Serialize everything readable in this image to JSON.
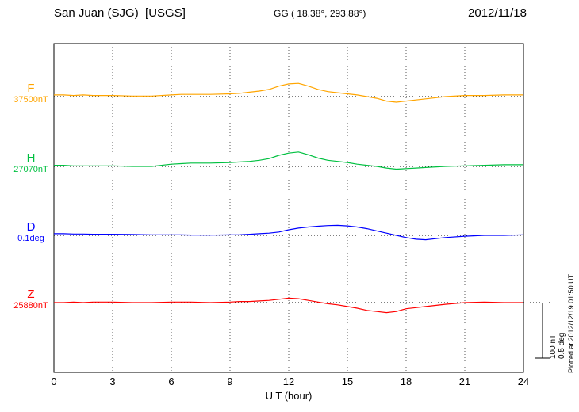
{
  "header": {
    "station": "San Juan (SJG)  [USGS]",
    "coords": "GG ( 18.38°, 293.88°)",
    "date": "2012/11/18"
  },
  "axis": {
    "ticks": [
      "0",
      "3",
      "6",
      "9",
      "12",
      "15",
      "18",
      "21",
      "24"
    ],
    "xlabel": "U T (hour)"
  },
  "scalebar": {
    "line1": "100 nT",
    "line2": "0.5 deg"
  },
  "plotted_at": "Plotted at 2012/12/19 01:50 UT",
  "chart_data": {
    "type": "line",
    "title": "San Juan (SJG) [USGS] magnetogram",
    "date": "2012/11/18",
    "xlabel": "U T (hour)",
    "x_range": [
      0,
      24
    ],
    "x_ticks": [
      0,
      3,
      6,
      9,
      12,
      15,
      18,
      21,
      24
    ],
    "grid": "dotted-vertical",
    "scale_bar": {
      "nT": 100,
      "deg": 0.5
    },
    "x": [
      0,
      0.5,
      1,
      1.5,
      2,
      3,
      4,
      5,
      6,
      6.5,
      7,
      8,
      9,
      9.5,
      10,
      10.5,
      11,
      11.5,
      12,
      12.5,
      13,
      13.5,
      14,
      14.5,
      15,
      15.5,
      16,
      16.5,
      17,
      17.5,
      18,
      18.5,
      19,
      20,
      21,
      22,
      23,
      24
    ],
    "series": [
      {
        "name": "F",
        "color": "#FFA500",
        "unit": "nT",
        "baseline_label": "37500nT",
        "baseline_value": 37500,
        "offsets": [
          3,
          3,
          2,
          3,
          2,
          2,
          1,
          1,
          3,
          4,
          4,
          4,
          5,
          6,
          8,
          10,
          13,
          19,
          23,
          24,
          19,
          13,
          9,
          7,
          5,
          3,
          0,
          -3,
          -8,
          -10,
          -8,
          -6,
          -4,
          0,
          2,
          2,
          3,
          3
        ]
      },
      {
        "name": "H",
        "color": "#00C040",
        "unit": "nT",
        "baseline_label": "27070nT",
        "baseline_value": 27070,
        "offsets": [
          2,
          2,
          1,
          1,
          1,
          1,
          0,
          0,
          4,
          5,
          6,
          6,
          7,
          8,
          9,
          11,
          14,
          20,
          24,
          26,
          21,
          15,
          11,
          9,
          7,
          4,
          2,
          0,
          -3,
          -5,
          -4,
          -3,
          -2,
          0,
          1,
          2,
          3,
          3
        ]
      },
      {
        "name": "D",
        "color": "#0000FF",
        "unit": "deg",
        "baseline_label": "0.1deg",
        "baseline_value": 0.1,
        "offsets": [
          0.015,
          0.015,
          0.012,
          0.012,
          0.01,
          0.01,
          0.008,
          0.005,
          0.005,
          0.004,
          0.003,
          0.002,
          0.004,
          0.006,
          0.01,
          0.015,
          0.02,
          0.03,
          0.05,
          0.065,
          0.075,
          0.082,
          0.088,
          0.09,
          0.085,
          0.075,
          0.06,
          0.04,
          0.02,
          0.0,
          -0.02,
          -0.035,
          -0.04,
          -0.02,
          -0.008,
          0.0,
          0.0,
          0.005
        ]
      },
      {
        "name": "Z",
        "color": "#FF0000",
        "unit": "nT",
        "baseline_label": "25880nT",
        "baseline_value": 25880,
        "offsets": [
          0,
          0,
          1,
          0,
          1,
          1,
          0,
          0,
          1,
          1,
          1,
          0,
          1,
          2,
          2,
          3,
          4,
          6,
          8,
          7,
          4,
          1,
          -2,
          -4,
          -7,
          -10,
          -14,
          -16,
          -18,
          -16,
          -11,
          -9,
          -7,
          -3,
          0,
          1,
          0,
          0
        ]
      }
    ]
  }
}
